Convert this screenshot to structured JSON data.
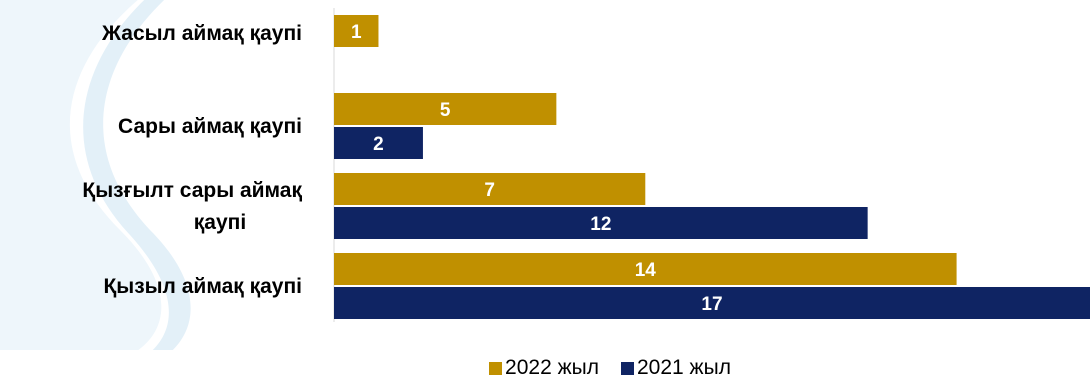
{
  "chart_data": {
    "type": "bar",
    "orientation": "horizontal",
    "categories": [
      "Жасыл аймақ қаупі",
      "Сары аймақ қаупі",
      "Қызғылт сары аймақ қаупі",
      "Қызыл аймақ қаупі"
    ],
    "category_lines": [
      [
        "Жасыл аймақ қаупі"
      ],
      [
        "Сары аймақ қаупі"
      ],
      [
        "Қызғылт сары аймақ",
        "қаупі"
      ],
      [
        "Қызыл аймақ қаупі"
      ]
    ],
    "series": [
      {
        "name": "2022 жыл",
        "color": "#C09000",
        "values": [
          1,
          5,
          7,
          14
        ]
      },
      {
        "name": "2021 жыл",
        "color": "#0F2463",
        "values": [
          null,
          2,
          12,
          17
        ]
      }
    ],
    "xlim": [
      0,
      17
    ],
    "grid": false,
    "legend_position": "bottom",
    "data_labels": true
  },
  "legend": {
    "items": [
      {
        "label": "2022 жыл",
        "color": "#C09000"
      },
      {
        "label": "2021 жыл",
        "color": "#0F2463"
      }
    ]
  }
}
